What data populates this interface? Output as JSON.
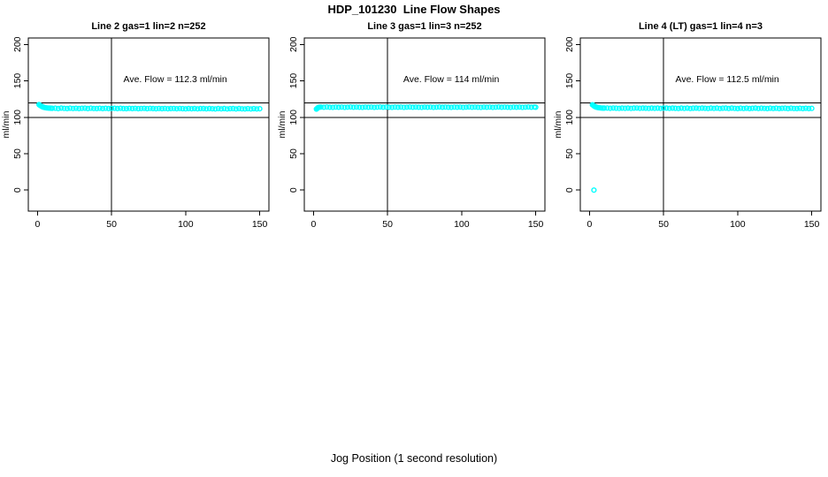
{
  "figure": {
    "title": "HDP_101230  Line Flow Shapes",
    "xlabel": "Jog Position (1 second resolution)",
    "background_color": "#ffffff",
    "point_color": "#00ffff",
    "axis_color": "#000000"
  },
  "chart_data": [
    {
      "type": "scatter",
      "title": "Line 2 gas=1 lin=2 n=252",
      "ylabel": "ml/min",
      "annotation": "Ave. Flow =  112.3  ml/min",
      "ave_flow": 112.3,
      "n": 252,
      "xticks": [
        0,
        50,
        100,
        150
      ],
      "yticks": [
        0,
        50,
        100,
        150,
        200
      ],
      "xlim": [
        -6.2,
        156.2
      ],
      "ylim": [
        -28.8,
        208.8
      ],
      "ref_lines_h": [
        100,
        120
      ],
      "ref_lines_v": [
        50
      ],
      "annotation_xy": [
        93,
        148
      ],
      "grid": false,
      "points": [
        [
          1,
          117.4
        ],
        [
          1.5,
          116.6
        ],
        [
          2,
          115.9
        ],
        [
          2.5,
          115.3
        ],
        [
          3,
          114.8
        ],
        [
          3.5,
          114.3
        ],
        [
          4,
          113.9
        ],
        [
          4.5,
          113.6
        ],
        [
          5,
          113.3
        ],
        [
          6,
          112.9
        ],
        [
          7,
          112.7
        ],
        [
          8,
          112.5
        ],
        [
          9,
          112.4
        ],
        [
          10,
          112.3
        ],
        [
          12,
          112.4
        ],
        [
          14,
          112.0
        ],
        [
          16,
          112.5
        ],
        [
          18,
          112.2
        ],
        [
          20,
          111.9
        ],
        [
          22,
          112.4
        ],
        [
          24,
          112.1
        ],
        [
          26,
          112.3
        ],
        [
          28,
          111.9
        ],
        [
          30,
          112.3
        ],
        [
          32,
          112.4
        ],
        [
          34,
          112.0
        ],
        [
          36,
          112.4
        ],
        [
          38,
          112.1
        ],
        [
          40,
          111.9
        ],
        [
          42,
          112.3
        ],
        [
          44,
          112.0
        ],
        [
          46,
          112.3
        ],
        [
          48,
          111.9
        ],
        [
          50,
          112.2
        ],
        [
          52,
          112.3
        ],
        [
          54,
          111.9
        ],
        [
          56,
          112.3
        ],
        [
          58,
          112.0
        ],
        [
          60,
          111.8
        ],
        [
          62,
          112.2
        ],
        [
          64,
          111.9
        ],
        [
          66,
          112.2
        ],
        [
          68,
          111.8
        ],
        [
          70,
          112.1
        ],
        [
          72,
          112.2
        ],
        [
          74,
          111.8
        ],
        [
          76,
          112.2
        ],
        [
          78,
          111.9
        ],
        [
          80,
          111.7
        ],
        [
          82,
          112.1
        ],
        [
          84,
          111.8
        ],
        [
          86,
          112.1
        ],
        [
          88,
          111.7
        ],
        [
          90,
          112.0
        ],
        [
          92,
          112.1
        ],
        [
          94,
          111.7
        ],
        [
          96,
          112.1
        ],
        [
          98,
          111.8
        ],
        [
          100,
          111.6
        ],
        [
          102,
          112.0
        ],
        [
          104,
          111.7
        ],
        [
          106,
          112.0
        ],
        [
          108,
          111.6
        ],
        [
          110,
          111.9
        ],
        [
          112,
          112.0
        ],
        [
          114,
          111.6
        ],
        [
          116,
          112.0
        ],
        [
          118,
          111.7
        ],
        [
          120,
          111.5
        ],
        [
          122,
          111.9
        ],
        [
          124,
          111.6
        ],
        [
          126,
          111.9
        ],
        [
          128,
          111.5
        ],
        [
          130,
          111.8
        ],
        [
          132,
          111.9
        ],
        [
          134,
          111.5
        ],
        [
          136,
          111.9
        ],
        [
          138,
          111.6
        ],
        [
          140,
          111.4
        ],
        [
          142,
          111.8
        ],
        [
          144,
          111.5
        ],
        [
          146,
          111.8
        ],
        [
          148,
          111.4
        ],
        [
          150,
          111.7
        ]
      ]
    },
    {
      "type": "scatter",
      "title": "Line 3 gas=1 lin=3 n=252",
      "ylabel": "ml/min",
      "annotation": "Ave. Flow =  114  ml/min",
      "ave_flow": 114,
      "n": 252,
      "xticks": [
        0,
        50,
        100,
        150
      ],
      "yticks": [
        0,
        50,
        100,
        150,
        200
      ],
      "xlim": [
        -6.2,
        156.2
      ],
      "ylim": [
        -28.8,
        208.8
      ],
      "ref_lines_h": [
        100,
        120
      ],
      "ref_lines_v": [
        50
      ],
      "annotation_xy": [
        93,
        148
      ],
      "grid": false,
      "points": [
        [
          2,
          111.2
        ],
        [
          2.5,
          112.2
        ],
        [
          3,
          113.0
        ],
        [
          3.5,
          113.5
        ],
        [
          4,
          113.8
        ],
        [
          5,
          114.0
        ],
        [
          7,
          113.7
        ],
        [
          9,
          114.1
        ],
        [
          11,
          113.8
        ],
        [
          13,
          113.6
        ],
        [
          15,
          114.0
        ],
        [
          17,
          113.7
        ],
        [
          19,
          114.0
        ],
        [
          21,
          113.6
        ],
        [
          23,
          113.9
        ],
        [
          25,
          114.1
        ],
        [
          27,
          113.7
        ],
        [
          29,
          114.0
        ],
        [
          31,
          113.8
        ],
        [
          33,
          113.6
        ],
        [
          35,
          114.0
        ],
        [
          37,
          113.7
        ],
        [
          39,
          114.0
        ],
        [
          41,
          113.6
        ],
        [
          43,
          113.9
        ],
        [
          45,
          114.1
        ],
        [
          47,
          113.7
        ],
        [
          49,
          114.0
        ],
        [
          51,
          113.8
        ],
        [
          53,
          113.6
        ],
        [
          55,
          114.0
        ],
        [
          57,
          113.7
        ],
        [
          59,
          114.0
        ],
        [
          61,
          113.6
        ],
        [
          63,
          113.9
        ],
        [
          65,
          114.1
        ],
        [
          67,
          113.7
        ],
        [
          69,
          114.0
        ],
        [
          71,
          113.8
        ],
        [
          73,
          113.6
        ],
        [
          75,
          114.0
        ],
        [
          77,
          113.7
        ],
        [
          79,
          114.0
        ],
        [
          81,
          113.6
        ],
        [
          83,
          113.9
        ],
        [
          85,
          114.1
        ],
        [
          87,
          113.7
        ],
        [
          89,
          114.0
        ],
        [
          91,
          113.8
        ],
        [
          93,
          113.6
        ],
        [
          95,
          114.0
        ],
        [
          97,
          113.7
        ],
        [
          99,
          114.0
        ],
        [
          101,
          113.6
        ],
        [
          103,
          113.9
        ],
        [
          105,
          114.1
        ],
        [
          107,
          113.7
        ],
        [
          109,
          114.0
        ],
        [
          111,
          113.8
        ],
        [
          113,
          113.6
        ],
        [
          115,
          114.0
        ],
        [
          117,
          113.7
        ],
        [
          119,
          114.0
        ],
        [
          121,
          113.6
        ],
        [
          123,
          113.9
        ],
        [
          125,
          114.1
        ],
        [
          127,
          113.7
        ],
        [
          129,
          114.0
        ],
        [
          131,
          113.8
        ],
        [
          133,
          113.6
        ],
        [
          135,
          114.0
        ],
        [
          137,
          113.7
        ],
        [
          139,
          114.0
        ],
        [
          141,
          113.6
        ],
        [
          143,
          113.9
        ],
        [
          145,
          114.1
        ],
        [
          147,
          113.7
        ],
        [
          149,
          114.0
        ],
        [
          150,
          113.8
        ]
      ]
    },
    {
      "type": "scatter",
      "title": "Line 4 (LT) gas=1 lin=4 n=3",
      "ylabel": "ml/min",
      "annotation": "Ave. Flow =  112.5  ml/min",
      "ave_flow": 112.5,
      "n": 3,
      "xticks": [
        0,
        50,
        100,
        150
      ],
      "yticks": [
        0,
        50,
        100,
        150,
        200
      ],
      "xlim": [
        -6.2,
        156.2
      ],
      "ylim": [
        -28.8,
        208.8
      ],
      "ref_lines_h": [
        100,
        120
      ],
      "ref_lines_v": [
        50
      ],
      "annotation_xy": [
        93,
        148
      ],
      "grid": false,
      "points": [
        [
          3,
          0
        ],
        [
          2,
          117.2
        ],
        [
          2.5,
          116.4
        ],
        [
          3,
          115.6
        ],
        [
          3.5,
          115.0
        ],
        [
          4,
          114.4
        ],
        [
          4.5,
          114.0
        ],
        [
          5,
          113.6
        ],
        [
          6,
          113.2
        ],
        [
          7,
          112.9
        ],
        [
          8,
          112.7
        ],
        [
          9,
          112.6
        ],
        [
          10,
          112.5
        ],
        [
          12,
          112.7
        ],
        [
          14,
          112.3
        ],
        [
          16,
          112.7
        ],
        [
          18,
          112.4
        ],
        [
          20,
          112.2
        ],
        [
          22,
          112.6
        ],
        [
          24,
          112.3
        ],
        [
          26,
          112.6
        ],
        [
          28,
          112.2
        ],
        [
          30,
          112.5
        ],
        [
          32,
          112.7
        ],
        [
          34,
          112.3
        ],
        [
          36,
          112.6
        ],
        [
          38,
          112.4
        ],
        [
          40,
          112.2
        ],
        [
          42,
          112.6
        ],
        [
          44,
          112.3
        ],
        [
          46,
          112.6
        ],
        [
          48,
          112.2
        ],
        [
          50,
          112.5
        ],
        [
          52,
          112.6
        ],
        [
          54,
          112.2
        ],
        [
          56,
          112.6
        ],
        [
          58,
          112.3
        ],
        [
          60,
          112.1
        ],
        [
          62,
          112.5
        ],
        [
          64,
          112.2
        ],
        [
          66,
          112.5
        ],
        [
          68,
          112.1
        ],
        [
          70,
          112.4
        ],
        [
          72,
          112.6
        ],
        [
          74,
          112.2
        ],
        [
          76,
          112.5
        ],
        [
          78,
          112.3
        ],
        [
          80,
          112.1
        ],
        [
          82,
          112.5
        ],
        [
          84,
          112.2
        ],
        [
          86,
          112.5
        ],
        [
          88,
          112.1
        ],
        [
          90,
          112.4
        ],
        [
          92,
          112.5
        ],
        [
          94,
          112.1
        ],
        [
          96,
          112.5
        ],
        [
          98,
          112.2
        ],
        [
          100,
          112.0
        ],
        [
          102,
          112.4
        ],
        [
          104,
          112.1
        ],
        [
          106,
          112.4
        ],
        [
          108,
          112.0
        ],
        [
          110,
          112.3
        ],
        [
          112,
          112.5
        ],
        [
          114,
          112.1
        ],
        [
          116,
          112.4
        ],
        [
          118,
          112.2
        ],
        [
          120,
          112.0
        ],
        [
          122,
          112.4
        ],
        [
          124,
          112.1
        ],
        [
          126,
          112.4
        ],
        [
          128,
          112.0
        ],
        [
          130,
          112.3
        ],
        [
          132,
          112.4
        ],
        [
          134,
          112.0
        ],
        [
          136,
          112.4
        ],
        [
          138,
          112.1
        ],
        [
          140,
          111.9
        ],
        [
          142,
          112.3
        ],
        [
          144,
          112.0
        ],
        [
          146,
          112.3
        ],
        [
          148,
          111.9
        ],
        [
          150,
          112.2
        ]
      ]
    }
  ]
}
